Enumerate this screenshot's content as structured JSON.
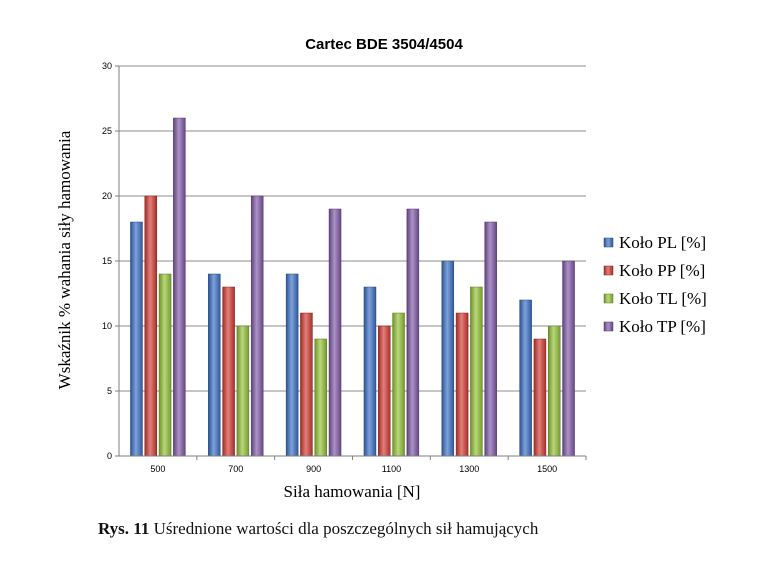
{
  "chart_data": {
    "type": "bar",
    "title": "Cartec BDE 3504/4504",
    "xlabel": "Siła hamowania [N]",
    "ylabel": "Wskaźnik %  wahania siły hamowania",
    "categories": [
      "500",
      "700",
      "900",
      "1100",
      "1300",
      "1500"
    ],
    "ylim": [
      0,
      30
    ],
    "yticks": [
      0,
      5,
      10,
      15,
      20,
      25,
      30
    ],
    "grid": true,
    "legend_position": "right",
    "series": [
      {
        "name": "Koło PL [%]",
        "color": "#3a6fc4",
        "values": [
          18,
          14,
          14,
          13,
          15,
          12
        ]
      },
      {
        "name": "Koło PP [%]",
        "color": "#d23a33",
        "values": [
          20,
          13,
          11,
          10,
          11,
          9
        ]
      },
      {
        "name": "Koło TL [%]",
        "color": "#94c236",
        "values": [
          14,
          10,
          9,
          11,
          13,
          10
        ]
      },
      {
        "name": "Koło TP [%]",
        "color": "#8058a8",
        "values": [
          26,
          20,
          19,
          19,
          18,
          15
        ]
      }
    ]
  },
  "caption": {
    "label": "Rys. 11",
    "text": " Uśrednione wartości dla poszczególnych sił hamujących"
  }
}
